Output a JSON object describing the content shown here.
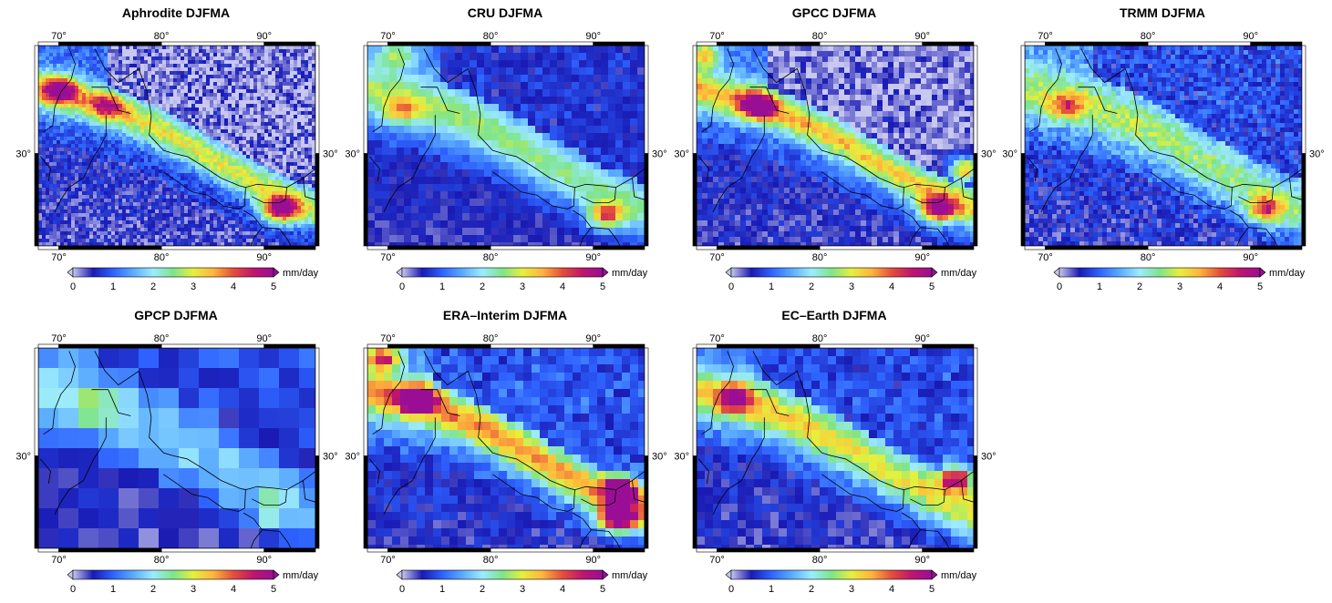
{
  "panels": [
    {
      "title": "Aphrodite DJFMA",
      "style": "aphrodite"
    },
    {
      "title": "CRU DJFMA",
      "style": "cru"
    },
    {
      "title": "GPCC DJFMA",
      "style": "gpcc"
    },
    {
      "title": "TRMM DJFMA",
      "style": "trmm"
    },
    {
      "title": "GPCP DJFMA",
      "style": "gpcp"
    },
    {
      "title": "ERA–Interim DJFMA",
      "style": "era"
    },
    {
      "title": "EC–Earth DJFMA",
      "style": "ecearth"
    }
  ],
  "map": {
    "lon_ticks": [
      "70°",
      "80°",
      "90°"
    ],
    "lat_ticks": [
      "30°"
    ],
    "lon_range": [
      68,
      95
    ],
    "lat_range": [
      24,
      37
    ]
  },
  "colorbar": {
    "unit": "mm/day",
    "ticks": [
      "0",
      "1",
      "2",
      "3",
      "4",
      "5"
    ],
    "colors": [
      "#c8c8f0",
      "#1a1ab4",
      "#2e62ff",
      "#5aaaff",
      "#9cebff",
      "#7ee48a",
      "#e6f03c",
      "#ffb43c",
      "#e44e3c",
      "#c0146e",
      "#9a0e96"
    ]
  },
  "chart_data": [
    {
      "type": "heatmap",
      "title": "Aphrodite DJFMA",
      "x_ticks": [
        "70°",
        "80°",
        "90°"
      ],
      "y_ticks": [
        "30°"
      ],
      "colorbar_label": "mm/day",
      "colorbar_range": [
        0,
        5
      ]
    },
    {
      "type": "heatmap",
      "title": "CRU DJFMA",
      "x_ticks": [
        "70°",
        "80°",
        "90°"
      ],
      "y_ticks": [
        "30°"
      ],
      "colorbar_label": "mm/day",
      "colorbar_range": [
        0,
        5
      ]
    },
    {
      "type": "heatmap",
      "title": "GPCC DJFMA",
      "x_ticks": [
        "70°",
        "80°",
        "90°"
      ],
      "y_ticks": [
        "30°"
      ],
      "colorbar_label": "mm/day",
      "colorbar_range": [
        0,
        5
      ]
    },
    {
      "type": "heatmap",
      "title": "TRMM DJFMA",
      "x_ticks": [
        "70°",
        "80°",
        "90°"
      ],
      "y_ticks": [
        "30°"
      ],
      "colorbar_label": "mm/day",
      "colorbar_range": [
        0,
        5
      ]
    },
    {
      "type": "heatmap",
      "title": "GPCP DJFMA",
      "x_ticks": [
        "70°",
        "80°",
        "90°"
      ],
      "y_ticks": [
        "30°"
      ],
      "colorbar_label": "mm/day",
      "colorbar_range": [
        0,
        5
      ]
    },
    {
      "type": "heatmap",
      "title": "ERA–Interim DJFMA",
      "x_ticks": [
        "70°",
        "80°",
        "90°"
      ],
      "y_ticks": [
        "30°"
      ],
      "colorbar_label": "mm/day",
      "colorbar_range": [
        0,
        5
      ]
    },
    {
      "type": "heatmap",
      "title": "EC–Earth DJFMA",
      "x_ticks": [
        "70°",
        "80°",
        "90°"
      ],
      "y_ticks": [
        "30°"
      ],
      "colorbar_label": "mm/day",
      "colorbar_range": [
        0,
        5
      ]
    }
  ]
}
